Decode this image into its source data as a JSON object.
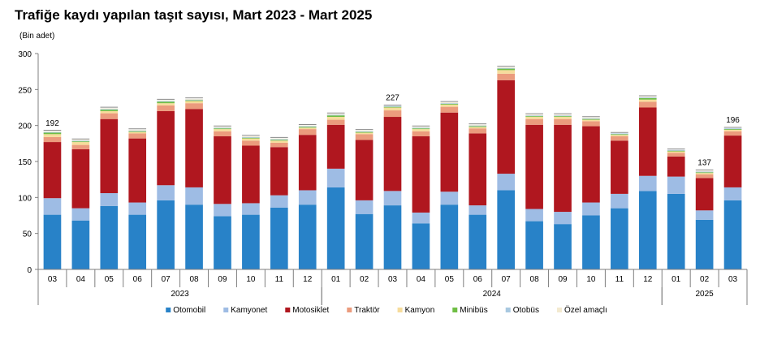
{
  "chart_data": {
    "type": "bar",
    "stacked": true,
    "title": "Trafiğe kaydı yapılan taşıt sayısı, Mart 2023 - Mart 2025",
    "unit_label": "(Bin adet)",
    "ylim": [
      0,
      300
    ],
    "yticks": [
      "0",
      "50",
      "100",
      "150",
      "200",
      "250",
      "300"
    ],
    "grid": false,
    "legend_position": "bottom",
    "categories": [
      "03",
      "04",
      "05",
      "06",
      "07",
      "08",
      "09",
      "10",
      "11",
      "12",
      "01",
      "02",
      "03",
      "04",
      "05",
      "06",
      "07",
      "08",
      "09",
      "10",
      "11",
      "12",
      "01",
      "02",
      "03"
    ],
    "year_groups": [
      {
        "label": "2023",
        "start": 0,
        "end": 9
      },
      {
        "label": "2024",
        "start": 10,
        "end": 21
      },
      {
        "label": "2025",
        "start": 22,
        "end": 24
      }
    ],
    "series": [
      {
        "name": "Otomobil",
        "color": "#2882c8",
        "values": [
          76,
          68,
          88,
          76,
          96,
          90,
          74,
          76,
          86,
          90,
          114,
          77,
          89,
          64,
          90,
          76,
          110,
          67,
          63,
          75,
          85,
          109,
          105,
          69,
          96
        ]
      },
      {
        "name": "Kamyonet",
        "color": "#9ebce4",
        "values": [
          23,
          17,
          18,
          17,
          21,
          24,
          17,
          16,
          17,
          20,
          26,
          19,
          20,
          15,
          18,
          13,
          23,
          17,
          17,
          18,
          20,
          21,
          24,
          13,
          18
        ]
      },
      {
        "name": "Motosiklet",
        "color": "#b0171f",
        "values": [
          78,
          82,
          103,
          89,
          103,
          109,
          94,
          80,
          67,
          77,
          61,
          84,
          103,
          106,
          110,
          100,
          130,
          117,
          121,
          106,
          74,
          95,
          28,
          45,
          72
        ]
      },
      {
        "name": "Traktör",
        "color": "#eb9b7d",
        "values": [
          7,
          6,
          8,
          7,
          8,
          8,
          7,
          7,
          6,
          8,
          7,
          8,
          9,
          7,
          8,
          7,
          9,
          8,
          8,
          7,
          6,
          8,
          5,
          5,
          6
        ]
      },
      {
        "name": "Kamyon",
        "color": "#f6dc9b",
        "values": [
          4,
          4,
          3,
          2,
          3,
          3,
          3,
          3,
          3,
          2,
          4,
          2,
          4,
          3,
          3,
          2,
          5,
          3,
          3,
          2,
          2,
          3,
          2,
          2,
          2
        ]
      },
      {
        "name": "Minibüs",
        "color": "#6fbe44",
        "values": [
          2,
          1,
          2,
          1,
          2,
          1,
          1,
          1,
          1,
          1,
          2,
          1,
          1,
          1,
          1,
          1,
          2,
          1,
          1,
          1,
          1,
          2,
          1,
          1,
          1
        ]
      },
      {
        "name": "Otobüs",
        "color": "#a8c8e0",
        "values": [
          1,
          1,
          1,
          1,
          1,
          1,
          1,
          1,
          1,
          1,
          1,
          1,
          1,
          1,
          1,
          1,
          1,
          1,
          1,
          1,
          1,
          1,
          1,
          1,
          1
        ]
      },
      {
        "name": "Özel amaçlı",
        "color": "#f3ead0",
        "values": [
          1,
          1,
          1,
          1,
          1,
          1,
          1,
          1,
          1,
          1,
          1,
          1,
          0,
          1,
          1,
          1,
          1,
          1,
          1,
          1,
          0,
          1,
          0,
          1,
          0
        ]
      }
    ],
    "data_labels": [
      {
        "index": 0,
        "text": "192"
      },
      {
        "index": 12,
        "text": "227"
      },
      {
        "index": 23,
        "text": "137"
      },
      {
        "index": 24,
        "text": "196"
      }
    ]
  }
}
